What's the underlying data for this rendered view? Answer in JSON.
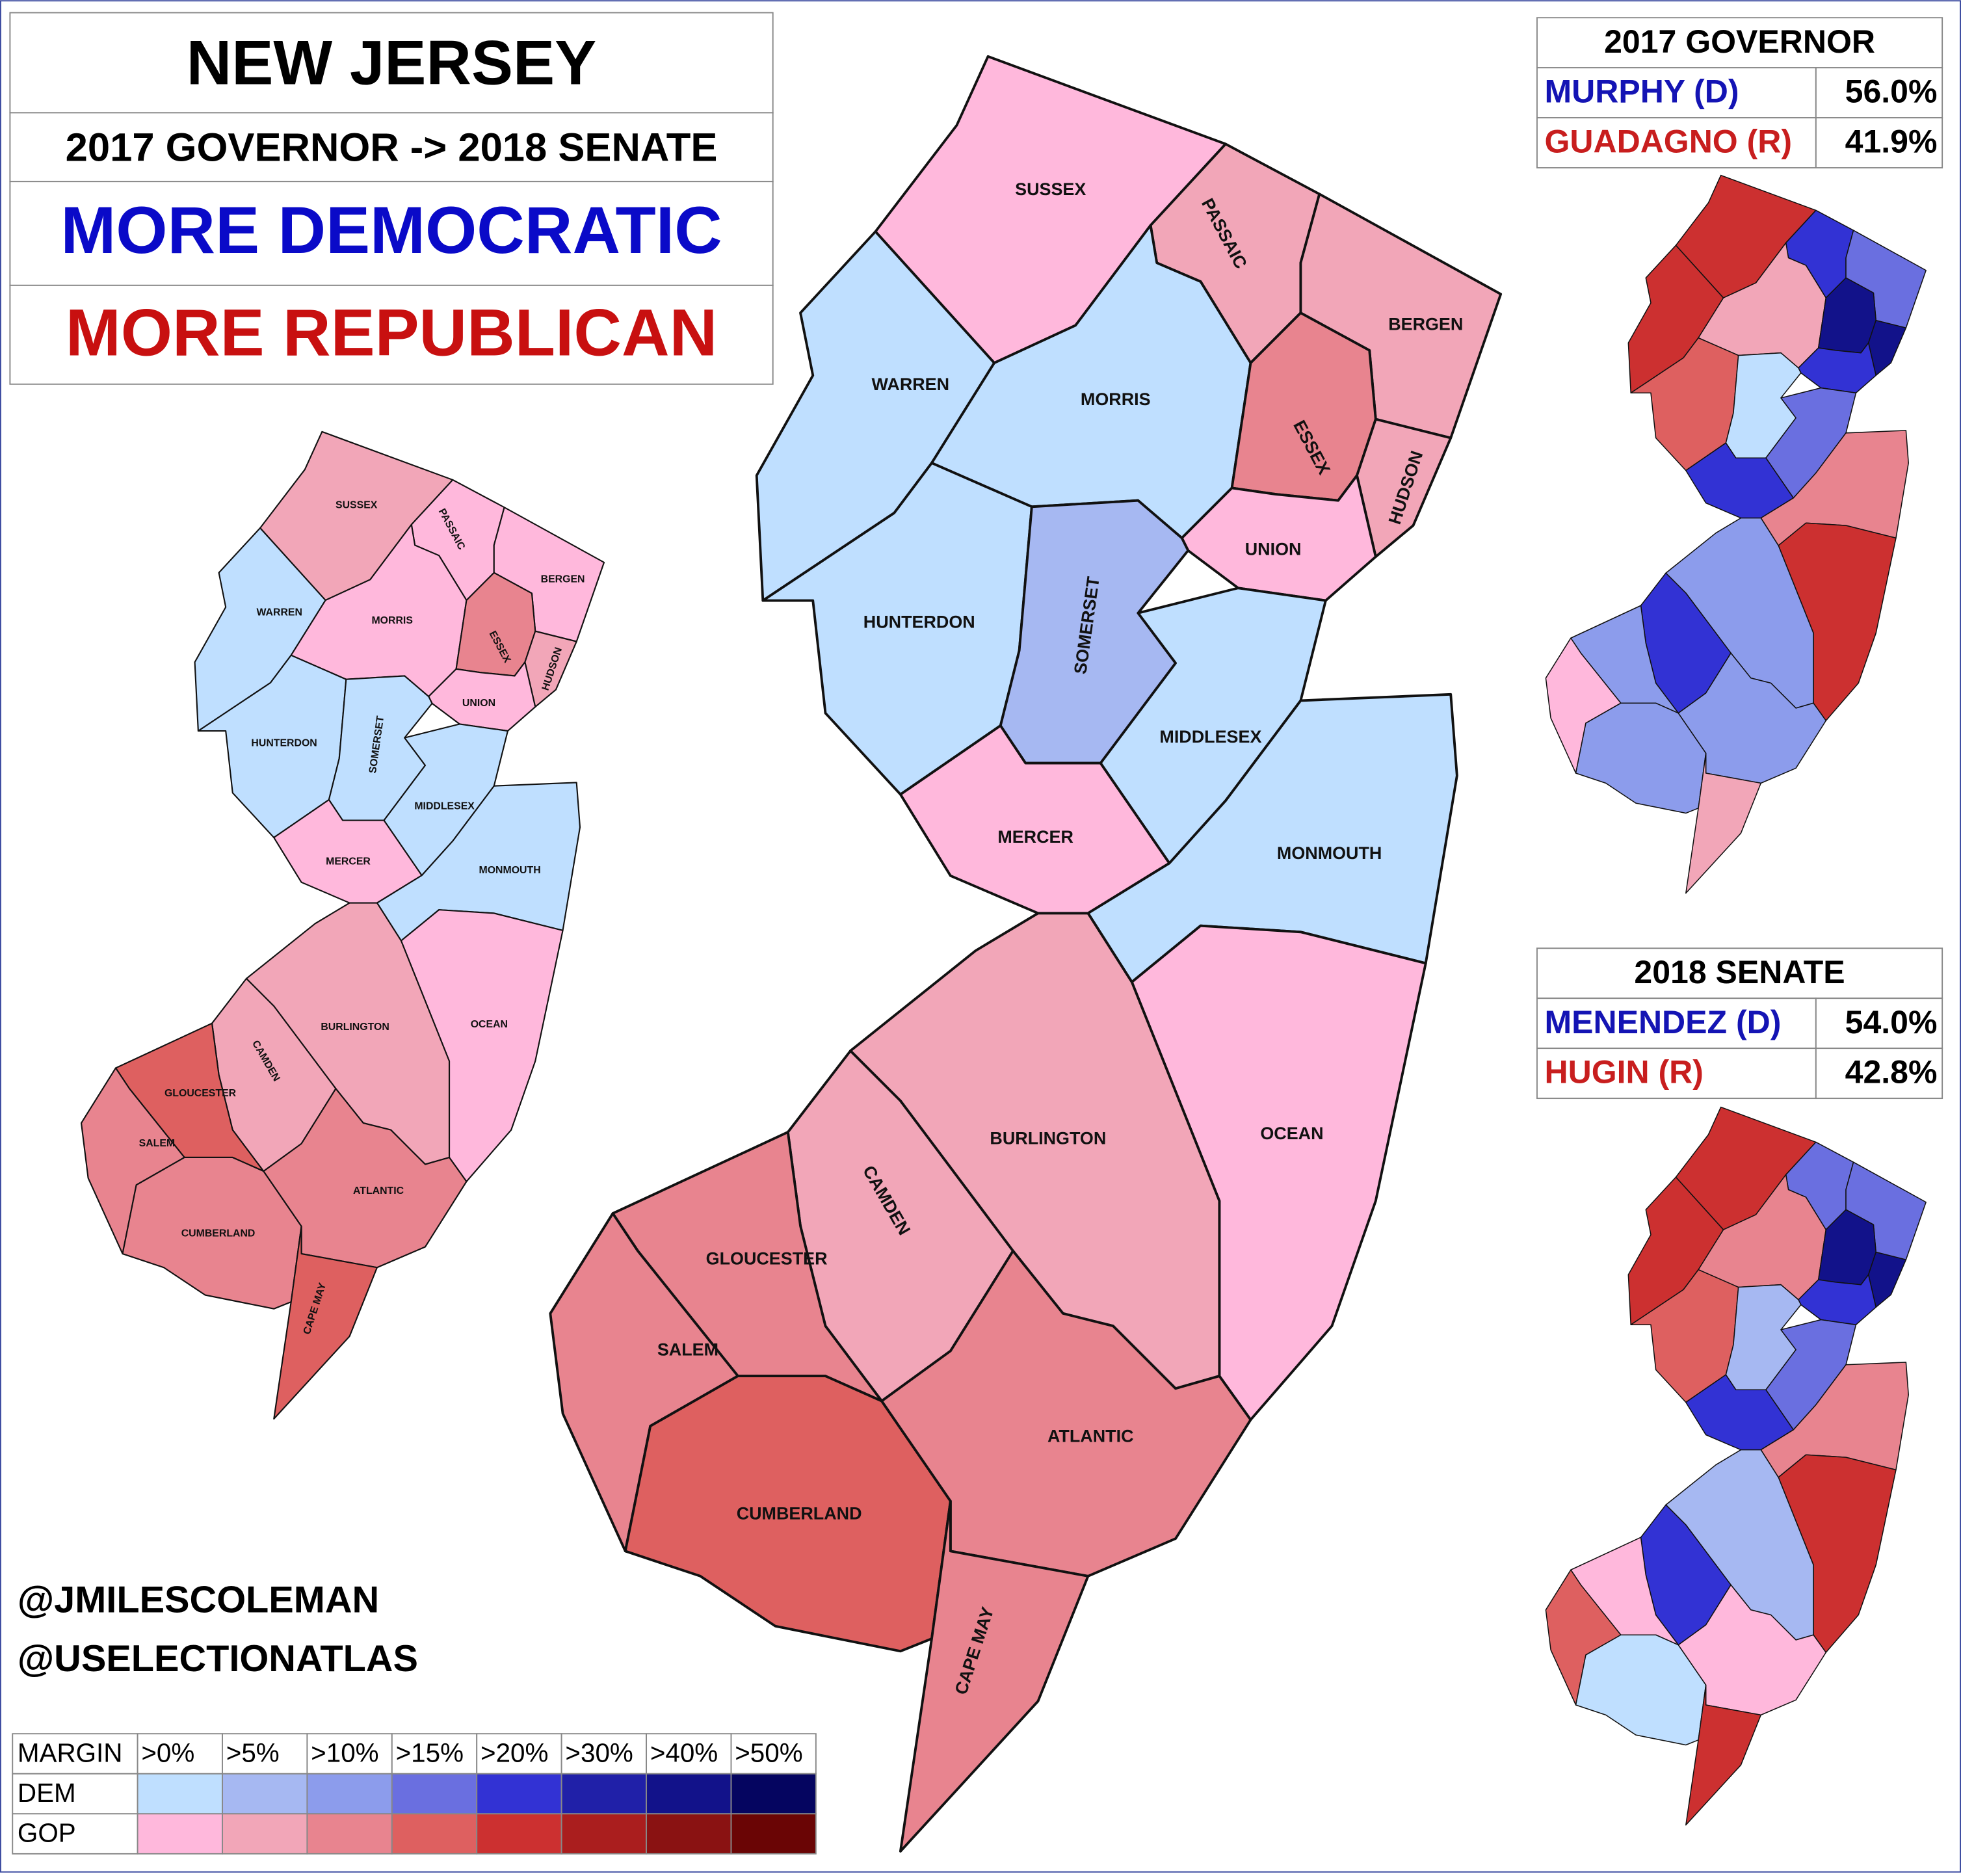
{
  "header": {
    "title": "NEW JERSEY",
    "subtitle": "2017 GOVERNOR -> 2018 SENATE",
    "more_democratic": "MORE DEMOCRATIC",
    "more_republican": "MORE REPUBLICAN"
  },
  "counties": [
    "SUSSEX",
    "PASSAIC",
    "BERGEN",
    "WARREN",
    "MORRIS",
    "ESSEX",
    "HUDSON",
    "UNION",
    "HUNTERDON",
    "SOMERSET",
    "MIDDLESEX",
    "MERCER",
    "MONMOUTH",
    "OCEAN",
    "BURLINGTON",
    "CAMDEN",
    "GLOUCESTER",
    "SALEM",
    "CUMBERLAND",
    "ATLANTIC",
    "CAPE MAY"
  ],
  "results": [
    {
      "title": "2017 GOVERNOR",
      "rows": [
        [
          "MURPHY (D)",
          "56.0%"
        ],
        [
          "GUADAGNO (R)",
          "41.9%"
        ]
      ]
    },
    {
      "title": "2018 SENATE",
      "rows": [
        [
          "MENENDEZ (D)",
          "54.0%"
        ],
        [
          "HUGIN (R)",
          "42.8%"
        ]
      ]
    }
  ],
  "credits": [
    "@JMILESCOLEMAN",
    "@USELECTIONATLAS"
  ],
  "legend": {
    "header": "MARGIN",
    "thresholds": [
      ">0%",
      ">5%",
      ">10%",
      ">15%",
      ">20%",
      ">30%",
      ">40%",
      ">50%"
    ],
    "rows": [
      {
        "label": "DEM",
        "colors": [
          "#bfdfff",
          "#a6b8f2",
          "#8c9cec",
          "#6a6fe0",
          "#3232d4",
          "#2020a8",
          "#12128a",
          "#050560"
        ]
      },
      {
        "label": "GOP",
        "colors": [
          "#ffb8dc",
          "#f2a6b8",
          "#e8848f",
          "#de6060",
          "#cc3030",
          "#aa1e1e",
          "#8a1212",
          "#6a0505"
        ]
      }
    ]
  }
}
